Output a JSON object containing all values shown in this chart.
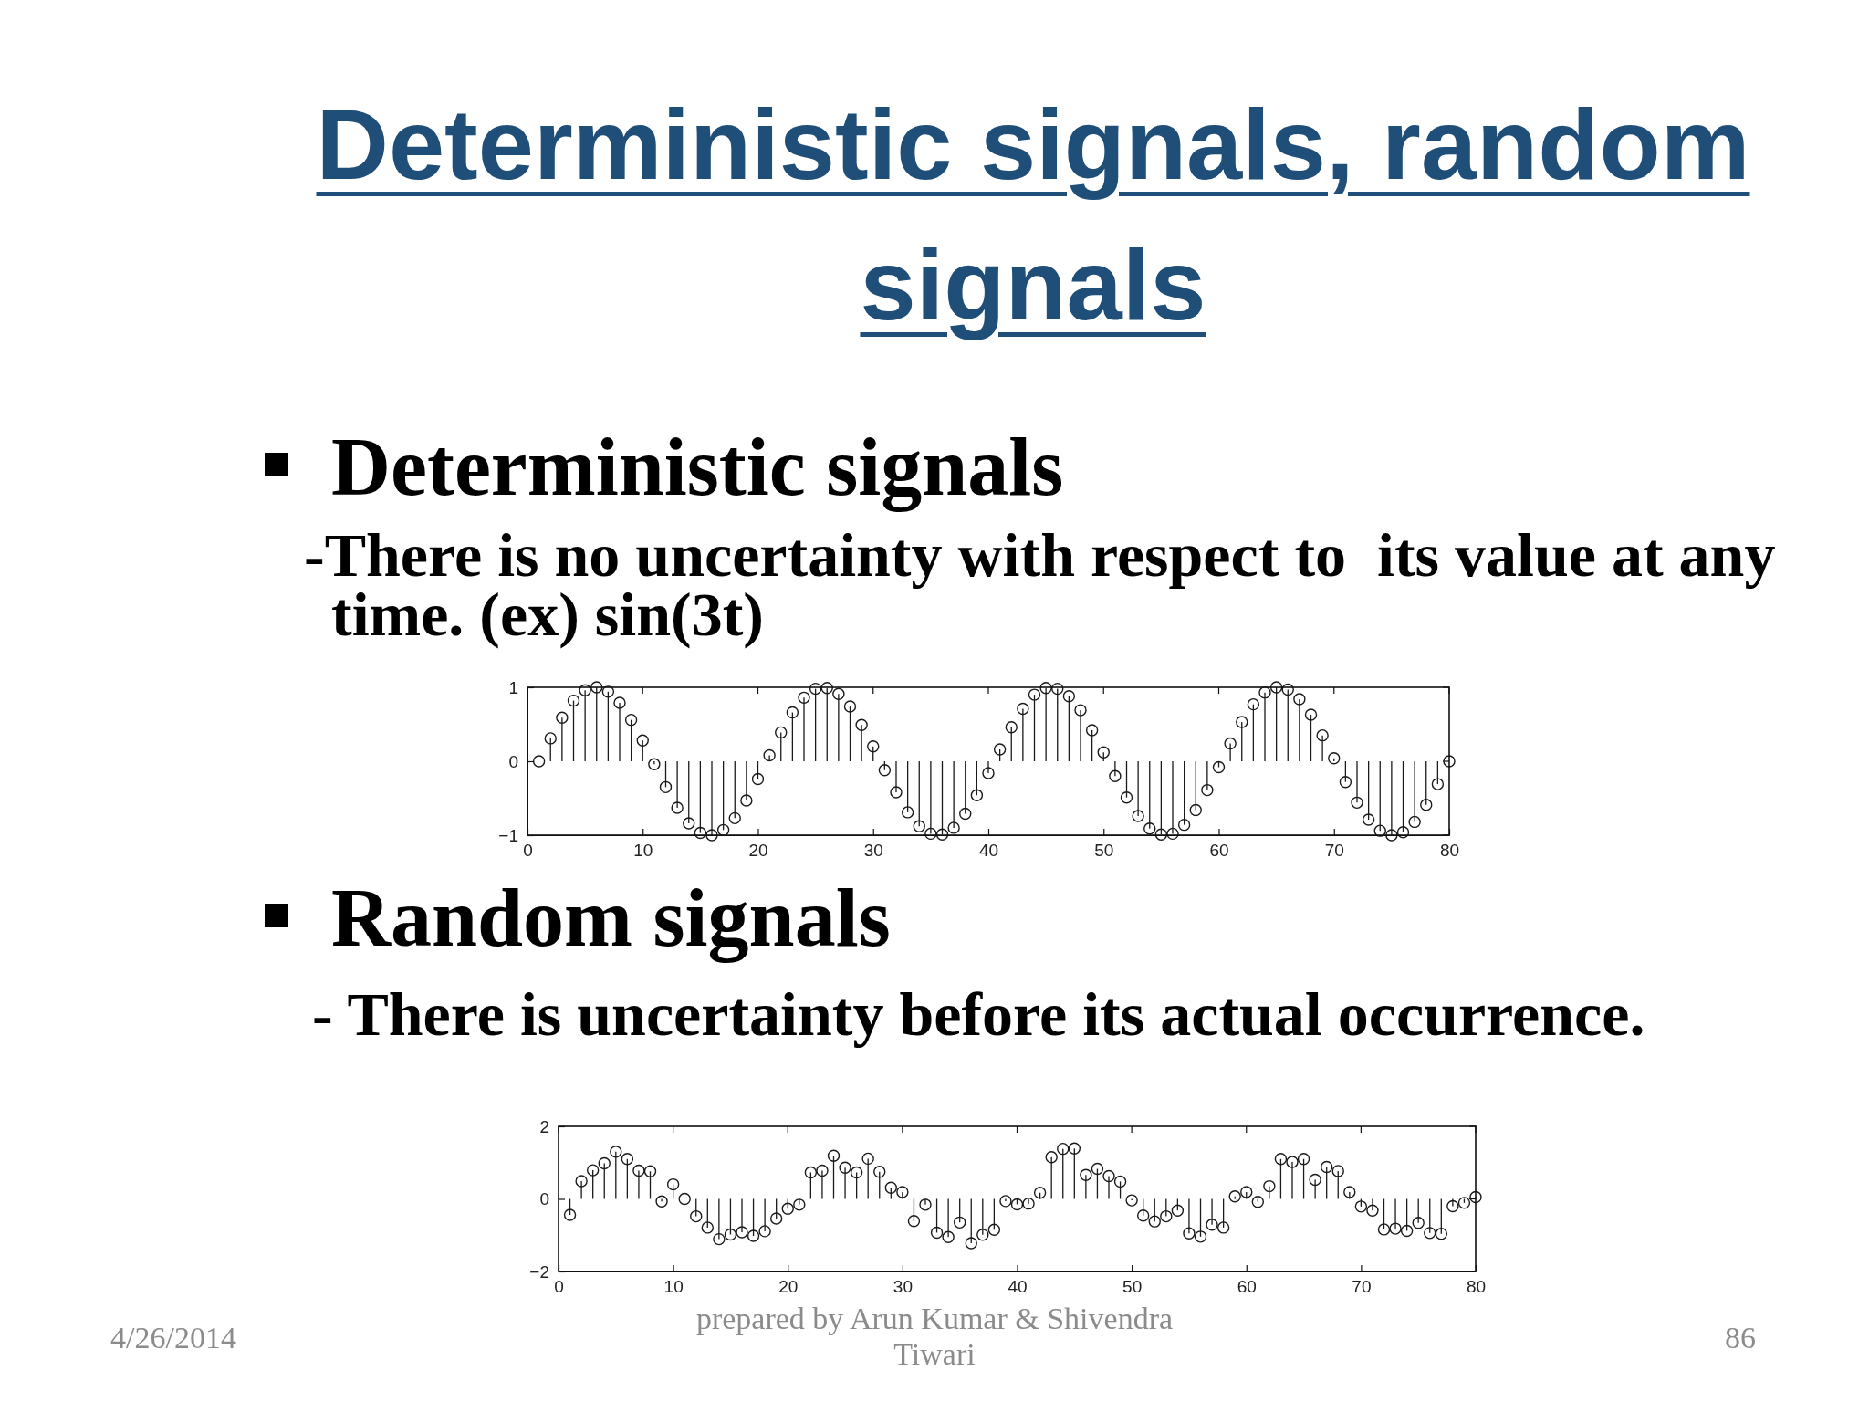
{
  "chart_data": [
    {
      "type": "lollipop",
      "title": "Deterministic signals, random signals",
      "subtitle": "Deterministic signals",
      "annotations": [
        "-There is no uncertainty with respect to  its value at any time. (ex) sin(3t)"
      ],
      "x": [
        1,
        2,
        3,
        4,
        5,
        6,
        7,
        8,
        9,
        10,
        11,
        12,
        13,
        14,
        15,
        16,
        17,
        18,
        19,
        20,
        21,
        22,
        23,
        24,
        25,
        26,
        27,
        28,
        29,
        30,
        31,
        32,
        33,
        34,
        35,
        36,
        37,
        38,
        39,
        40,
        41,
        42,
        43,
        44,
        45,
        46,
        47,
        48,
        49,
        50,
        51,
        52,
        53,
        54,
        55,
        56,
        57,
        58,
        59,
        60,
        61,
        62,
        63,
        64,
        65,
        66,
        67,
        68,
        69,
        70,
        71,
        72,
        73,
        74,
        75,
        76,
        77,
        78,
        79,
        80
      ],
      "values": [
        0,
        0.31,
        0.59,
        0.82,
        0.96,
        1,
        0.94,
        0.79,
        0.56,
        0.28,
        -0.04,
        -0.35,
        -0.63,
        -0.84,
        -0.97,
        -1,
        -0.93,
        -0.77,
        -0.53,
        -0.24,
        0.08,
        0.39,
        0.66,
        0.86,
        0.98,
        0.99,
        0.91,
        0.74,
        0.49,
        0.2,
        -0.12,
        -0.42,
        -0.69,
        -0.88,
        -0.98,
        -0.99,
        -0.9,
        -0.71,
        -0.46,
        -0.16,
        0.16,
        0.46,
        0.71,
        0.9,
        0.99,
        0.98,
        0.88,
        0.69,
        0.42,
        0.12,
        -0.2,
        -0.49,
        -0.74,
        -0.91,
        -0.99,
        -0.98,
        -0.86,
        -0.66,
        -0.39,
        -0.08,
        0.24,
        0.53,
        0.77,
        0.93,
        1,
        0.97,
        0.84,
        0.63,
        0.35,
        0.04,
        -0.28,
        -0.56,
        -0.79,
        -0.94,
        -1,
        -0.96,
        -0.82,
        -0.59,
        -0.31,
        0
      ],
      "color": "#1a1a1a",
      "marker": "circle",
      "xlim": [
        0,
        80
      ],
      "xticks": [
        0,
        10,
        20,
        30,
        40,
        50,
        60,
        70,
        80
      ],
      "ylim": [
        -1,
        1
      ],
      "yticks": [
        -1,
        0,
        1
      ]
    },
    {
      "type": "lollipop",
      "title": "Random signals",
      "subtitle": "- There is uncertainty before its actual occurrence.",
      "annotations": [
        "4/26/2014",
        "prepared by Arun Kumar & Shivendra Tiwari",
        "86"
      ],
      "x": [
        1,
        2,
        3,
        4,
        5,
        6,
        7,
        8,
        9,
        10,
        11,
        12,
        13,
        14,
        15,
        16,
        17,
        18,
        19,
        20,
        21,
        22,
        23,
        24,
        25,
        26,
        27,
        28,
        29,
        30,
        31,
        32,
        33,
        34,
        35,
        36,
        37,
        38,
        39,
        40,
        41,
        42,
        43,
        44,
        45,
        46,
        47,
        48,
        49,
        50,
        51,
        52,
        53,
        54,
        55,
        56,
        57,
        58,
        59,
        60,
        61,
        62,
        63,
        64,
        65,
        66,
        67,
        68,
        69,
        70,
        71,
        72,
        73,
        74,
        75,
        76,
        77,
        78,
        79,
        80
      ],
      "values": [
        -0.44,
        0.49,
        0.79,
        0.98,
        1.3,
        1.1,
        0.78,
        0.76,
        -0.07,
        0.4,
        0,
        -0.48,
        -0.79,
        -1.11,
        -0.98,
        -0.92,
        -1.02,
        -0.89,
        -0.54,
        -0.27,
        -0.16,
        0.73,
        0.78,
        1.19,
        0.86,
        0.73,
        1.11,
        0.75,
        0.31,
        0.19,
        -0.61,
        -0.16,
        -0.93,
        -1.05,
        -0.65,
        -1.22,
        -0.99,
        -0.85,
        -0.06,
        -0.15,
        -0.13,
        0.17,
        1.15,
        1.38,
        1.39,
        0.66,
        0.83,
        0.63,
        0.48,
        -0.04,
        -0.46,
        -0.62,
        -0.48,
        -0.32,
        -0.95,
        -1.04,
        -0.71,
        -0.79,
        0.07,
        0.19,
        -0.08,
        0.35,
        1.1,
        1.02,
        1.1,
        0.53,
        0.88,
        0.77,
        0.19,
        -0.21,
        -0.32,
        -0.84,
        -0.82,
        -0.88,
        -0.66,
        -0.94,
        -0.96,
        -0.2,
        -0.11,
        0.05
      ],
      "color": "#1a1a1a",
      "marker": "circle",
      "xlim": [
        0,
        80
      ],
      "xticks": [
        0,
        10,
        20,
        30,
        40,
        50,
        60,
        70,
        80
      ],
      "ylim": [
        -2,
        2
      ],
      "yticks": [
        -2,
        0,
        2
      ]
    }
  ]
}
